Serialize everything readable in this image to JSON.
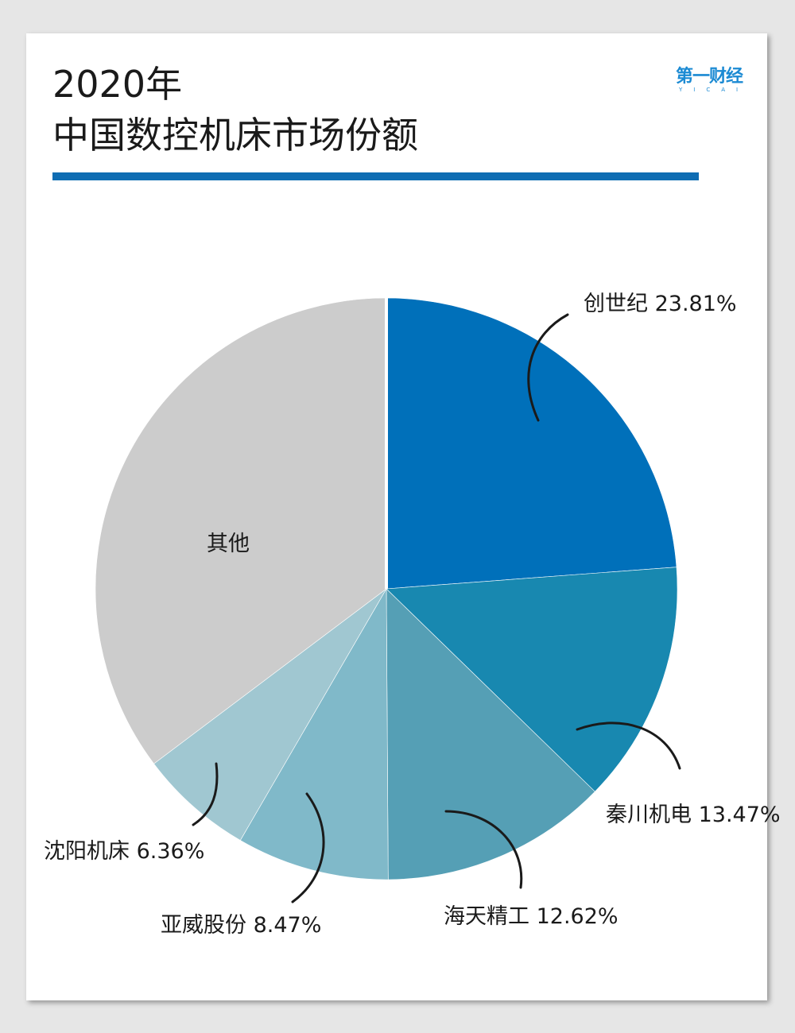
{
  "title": {
    "line1": "2020年",
    "line2": "中国数控机床市场份额"
  },
  "logo": {
    "text_cn": "第一财经",
    "text_en": "YICAI"
  },
  "colors": {
    "accent_rule": "#0f6db3",
    "logo": "#1b8ad3"
  },
  "chart_data": {
    "type": "pie",
    "start_angle_deg": 0,
    "direction": "clockwise",
    "slices": [
      {
        "name": "创世纪",
        "value": 23.81,
        "label": "创世纪 23.81%",
        "color": "#0070ba"
      },
      {
        "name": "秦川机电",
        "value": 13.47,
        "label": "秦川机电 13.47%",
        "color": "#1888b0"
      },
      {
        "name": "海天精工",
        "value": 12.62,
        "label": "海天精工 12.62%",
        "color": "#559fb5"
      },
      {
        "name": "亚威股份",
        "value": 8.47,
        "label": "亚威股份 8.47%",
        "color": "#80b9c9"
      },
      {
        "name": "沈阳机床",
        "value": 6.36,
        "label": "沈阳机床 6.36%",
        "color": "#a0c7d1"
      },
      {
        "name": "其他",
        "value": 35.27,
        "label": "其他",
        "color": "#cccccc"
      }
    ]
  }
}
